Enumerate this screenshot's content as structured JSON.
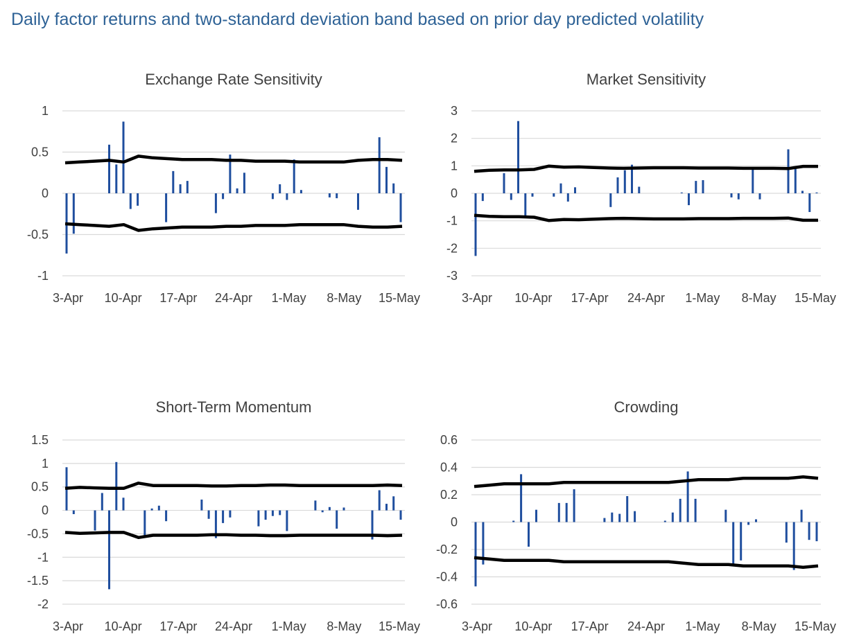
{
  "page": {
    "title": "Daily factor returns and two-standard deviation band based on prior day predicted volatility"
  },
  "colors": {
    "bar": "#1f4e9e",
    "band": "#000000",
    "grid": "#d9d9d9",
    "title": "#2e6296",
    "text": "#404040"
  },
  "chart_data": [
    {
      "type": "bar",
      "title": "Exchange Rate Sensitivity",
      "ylim": [
        -1,
        1
      ],
      "yticks": [
        "1",
        "0.5",
        "0",
        "-0.5",
        "-1"
      ],
      "xticks": [
        "3-Apr",
        "10-Apr",
        "17-Apr",
        "24-Apr",
        "1-May",
        "8-May",
        "15-May"
      ],
      "x_first": "3-Apr",
      "x_last": "16-May",
      "series": [
        {
          "type": "bar",
          "values": [
            -0.73,
            -0.49,
            0,
            0,
            0,
            0,
            0.59,
            0.35,
            0.87,
            -0.19,
            -0.15,
            0,
            0,
            0,
            -0.35,
            0.27,
            0.11,
            0.15,
            0,
            0,
            0,
            -0.24,
            -0.07,
            0.47,
            0.06,
            0.25,
            0,
            0,
            0,
            -0.07,
            0.11,
            -0.08,
            0.41,
            0.04,
            0,
            0,
            0,
            -0.05,
            -0.06,
            0,
            0,
            -0.2,
            0,
            0,
            0.68,
            0.32,
            0.12,
            -0.35
          ]
        },
        {
          "type": "line",
          "values": [
            0.37,
            0.38,
            0.39,
            0.4,
            0.38,
            0.45,
            0.43,
            0.42,
            0.41,
            0.41,
            0.41,
            0.4,
            0.4,
            0.39,
            0.39,
            0.39,
            0.38,
            0.38,
            0.38,
            0.38,
            0.4,
            0.41,
            0.41,
            0.4
          ]
        },
        {
          "type": "line",
          "values": [
            -0.37,
            -0.38,
            -0.39,
            -0.4,
            -0.38,
            -0.45,
            -0.43,
            -0.42,
            -0.41,
            -0.41,
            -0.41,
            -0.4,
            -0.4,
            -0.39,
            -0.39,
            -0.39,
            -0.38,
            -0.38,
            -0.38,
            -0.38,
            -0.4,
            -0.41,
            -0.41,
            -0.4
          ]
        }
      ]
    },
    {
      "type": "bar",
      "title": "Market Sensitivity",
      "ylim": [
        -3,
        3
      ],
      "yticks": [
        "3",
        "2",
        "1",
        "0",
        "-1",
        "-2",
        "-3"
      ],
      "xticks": [
        "3-Apr",
        "10-Apr",
        "17-Apr",
        "24-Apr",
        "1-May",
        "8-May",
        "15-May"
      ],
      "x_first": "3-Apr",
      "x_last": "16-May",
      "series": [
        {
          "type": "bar",
          "values": [
            -2.28,
            -0.28,
            0,
            0,
            0.73,
            -0.24,
            2.63,
            -0.85,
            -0.12,
            0,
            0,
            -0.12,
            0.36,
            -0.3,
            0.22,
            0,
            0,
            0,
            0,
            -0.5,
            0.58,
            0.84,
            1.04,
            0.24,
            0,
            0,
            0,
            0,
            0,
            0.03,
            -0.43,
            0.45,
            0.48,
            0,
            0,
            0,
            -0.15,
            -0.22,
            0,
            0.92,
            -0.22,
            0,
            0,
            0,
            1.6,
            0.92,
            0.09,
            -0.68,
            0.03
          ]
        },
        {
          "type": "line",
          "values": [
            0.8,
            0.84,
            0.85,
            0.85,
            0.87,
            0.99,
            0.95,
            0.96,
            0.94,
            0.92,
            0.91,
            0.92,
            0.93,
            0.93,
            0.93,
            0.92,
            0.92,
            0.92,
            0.91,
            0.91,
            0.91,
            0.9,
            0.98,
            0.98
          ]
        },
        {
          "type": "line",
          "values": [
            -0.8,
            -0.84,
            -0.85,
            -0.85,
            -0.87,
            -0.99,
            -0.95,
            -0.96,
            -0.94,
            -0.92,
            -0.91,
            -0.92,
            -0.93,
            -0.93,
            -0.93,
            -0.92,
            -0.92,
            -0.92,
            -0.91,
            -0.91,
            -0.91,
            -0.9,
            -0.98,
            -0.98
          ]
        }
      ]
    },
    {
      "type": "bar",
      "title": "Short-Term Momentum",
      "ylim": [
        -2,
        1.5
      ],
      "yticks": [
        "1.5",
        "1",
        "0.5",
        "0",
        "-0.5",
        "-1",
        "-1.5",
        "-2"
      ],
      "xticks": [
        "3-Apr",
        "10-Apr",
        "17-Apr",
        "24-Apr",
        "1-May",
        "8-May",
        "15-May"
      ],
      "x_first": "3-Apr",
      "x_last": "16-May",
      "series": [
        {
          "type": "bar",
          "values": [
            0.92,
            -0.08,
            0,
            0,
            -0.43,
            0.37,
            -1.68,
            1.03,
            0.27,
            0,
            0,
            -0.55,
            0.04,
            0.1,
            -0.23,
            0,
            0,
            0,
            0,
            0.23,
            -0.18,
            -0.59,
            -0.27,
            -0.15,
            0,
            0,
            0,
            -0.34,
            -0.2,
            -0.12,
            -0.1,
            -0.44,
            0,
            0,
            0,
            0.21,
            -0.04,
            0.07,
            -0.39,
            0.06,
            0,
            0,
            0,
            -0.62,
            0.43,
            0.14,
            0.3,
            -0.2
          ]
        },
        {
          "type": "line",
          "values": [
            0.47,
            0.49,
            0.48,
            0.47,
            0.47,
            0.58,
            0.53,
            0.53,
            0.53,
            0.53,
            0.52,
            0.52,
            0.53,
            0.53,
            0.54,
            0.54,
            0.53,
            0.53,
            0.53,
            0.53,
            0.53,
            0.53,
            0.54,
            0.53
          ]
        },
        {
          "type": "line",
          "values": [
            -0.47,
            -0.49,
            -0.48,
            -0.47,
            -0.47,
            -0.58,
            -0.53,
            -0.53,
            -0.53,
            -0.53,
            -0.52,
            -0.52,
            -0.53,
            -0.53,
            -0.54,
            -0.54,
            -0.53,
            -0.53,
            -0.53,
            -0.53,
            -0.53,
            -0.53,
            -0.54,
            -0.53
          ]
        }
      ]
    },
    {
      "type": "bar",
      "title": "Crowding",
      "ylim": [
        -0.6,
        0.6
      ],
      "yticks": [
        "0.6",
        "0.4",
        "0.2",
        "0",
        "-0.2",
        "-0.4",
        "-0.6"
      ],
      "xticks": [
        "3-Apr",
        "10-Apr",
        "17-Apr",
        "24-Apr",
        "1-May",
        "8-May",
        "15-May"
      ],
      "x_first": "3-Apr",
      "x_last": "16-May",
      "series": [
        {
          "type": "bar",
          "values": [
            -0.47,
            -0.31,
            0,
            0,
            0,
            0.01,
            0.35,
            -0.18,
            0.09,
            0,
            0,
            0.14,
            0.14,
            0.24,
            0,
            0,
            0,
            0.03,
            0.07,
            0.06,
            0.19,
            0.08,
            0,
            0,
            0,
            0.01,
            0.07,
            0.17,
            0.37,
            0.17,
            0,
            0,
            0,
            0.09,
            -0.31,
            -0.28,
            -0.02,
            0.02,
            0,
            0,
            0,
            -0.15,
            -0.35,
            0.09,
            -0.13,
            -0.14
          ]
        },
        {
          "type": "line",
          "values": [
            0.26,
            0.27,
            0.28,
            0.28,
            0.28,
            0.28,
            0.29,
            0.29,
            0.29,
            0.29,
            0.29,
            0.29,
            0.29,
            0.29,
            0.3,
            0.31,
            0.31,
            0.31,
            0.32,
            0.32,
            0.32,
            0.32,
            0.33,
            0.32
          ]
        },
        {
          "type": "line",
          "values": [
            -0.26,
            -0.27,
            -0.28,
            -0.28,
            -0.28,
            -0.28,
            -0.29,
            -0.29,
            -0.29,
            -0.29,
            -0.29,
            -0.29,
            -0.29,
            -0.29,
            -0.3,
            -0.31,
            -0.31,
            -0.31,
            -0.32,
            -0.32,
            -0.32,
            -0.32,
            -0.33,
            -0.32
          ]
        }
      ]
    }
  ]
}
